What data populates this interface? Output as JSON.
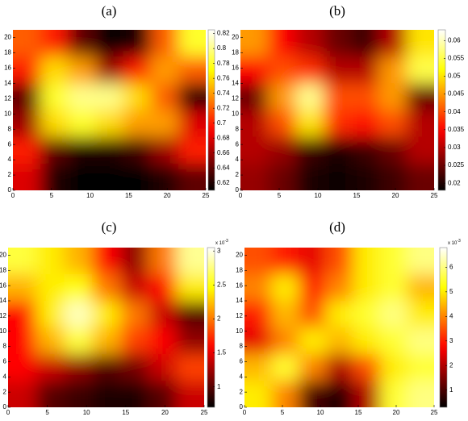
{
  "chart_data": [
    {
      "type": "heatmap",
      "title": "(a)",
      "colormap": "hot",
      "x": [
        1.79,
        5.36,
        8.93,
        12.5,
        16.07,
        19.64,
        23.21
      ],
      "y": [
        19.25,
        15.75,
        12.25,
        8.75,
        5.25,
        1.75
      ],
      "z": [
        [
          0.72,
          0.7,
          0.64,
          0.61,
          0.62,
          0.72,
          0.78
        ],
        [
          0.7,
          0.76,
          0.74,
          0.66,
          0.7,
          0.74,
          0.72
        ],
        [
          0.64,
          0.78,
          0.8,
          0.8,
          0.76,
          0.72,
          0.62
        ],
        [
          0.66,
          0.76,
          0.78,
          0.76,
          0.74,
          0.74,
          0.68
        ],
        [
          0.7,
          0.64,
          0.62,
          0.62,
          0.63,
          0.66,
          0.7
        ],
        [
          0.68,
          0.62,
          0.61,
          0.61,
          0.61,
          0.62,
          0.64
        ]
      ],
      "xlim": [
        0,
        25
      ],
      "ylim": [
        0,
        21
      ],
      "xticks": [
        0,
        5,
        10,
        15,
        20,
        25
      ],
      "yticks": [
        0,
        2,
        4,
        6,
        8,
        10,
        12,
        14,
        16,
        18,
        20
      ],
      "clim": [
        0.61,
        0.825
      ],
      "cticks": [
        0.62,
        0.64,
        0.66,
        0.68,
        0.7,
        0.72,
        0.74,
        0.76,
        0.78,
        0.8,
        0.82
      ]
    },
    {
      "type": "heatmap",
      "title": "(b)",
      "colormap": "hot",
      "x": [
        1.79,
        5.36,
        8.93,
        12.5,
        16.07,
        19.64,
        23.21
      ],
      "y": [
        19.25,
        15.75,
        12.25,
        8.75,
        5.25,
        1.75
      ],
      "z": [
        [
          0.045,
          0.035,
          0.03,
          0.025,
          0.022,
          0.03,
          0.05
        ],
        [
          0.035,
          0.04,
          0.038,
          0.03,
          0.03,
          0.045,
          0.055
        ],
        [
          0.025,
          0.045,
          0.058,
          0.04,
          0.04,
          0.045,
          0.025
        ],
        [
          0.03,
          0.04,
          0.05,
          0.038,
          0.036,
          0.04,
          0.03
        ],
        [
          0.03,
          0.028,
          0.022,
          0.02,
          0.022,
          0.025,
          0.03
        ],
        [
          0.028,
          0.025,
          0.02,
          0.019,
          0.02,
          0.022,
          0.025
        ]
      ],
      "xlim": [
        0,
        25
      ],
      "ylim": [
        0,
        21
      ],
      "xticks": [
        0,
        5,
        10,
        15,
        20,
        25
      ],
      "yticks": [
        0,
        2,
        4,
        6,
        8,
        10,
        12,
        14,
        16,
        18,
        20
      ],
      "clim": [
        0.018,
        0.063
      ],
      "cticks": [
        0.02,
        0.025,
        0.03,
        0.035,
        0.04,
        0.045,
        0.05,
        0.055,
        0.06
      ]
    },
    {
      "type": "heatmap",
      "title": "(c)",
      "colormap": "hot",
      "scale_label": {
        "base": "x 10",
        "exponent": "-3"
      },
      "x": [
        1.79,
        5.36,
        8.93,
        12.5,
        16.07,
        19.64,
        23.21
      ],
      "y": [
        19.25,
        15.75,
        12.25,
        8.75,
        5.25,
        1.75
      ],
      "z": [
        [
          2.6,
          2.4,
          2.2,
          1.6,
          1.2,
          2.0,
          2.8
        ],
        [
          2.2,
          2.4,
          2.5,
          2.0,
          1.4,
          1.6,
          2.4
        ],
        [
          1.6,
          2.4,
          2.9,
          2.4,
          2.0,
          1.4,
          1.0
        ],
        [
          1.6,
          2.2,
          2.6,
          2.2,
          1.8,
          1.6,
          1.2
        ],
        [
          1.6,
          1.4,
          1.2,
          1.0,
          1.1,
          1.4,
          1.8
        ],
        [
          1.4,
          1.0,
          0.9,
          0.8,
          0.8,
          1.0,
          1.4
        ]
      ],
      "xlim": [
        0,
        25
      ],
      "ylim": [
        0,
        21
      ],
      "xticks": [
        0,
        5,
        10,
        15,
        20,
        25
      ],
      "yticks": [
        0,
        2,
        4,
        6,
        8,
        10,
        12,
        14,
        16,
        18,
        20
      ],
      "clim": [
        0.7,
        3.05
      ],
      "cticks": [
        1,
        1.5,
        2,
        2.5,
        3
      ]
    },
    {
      "type": "heatmap",
      "title": "(d)",
      "colormap": "hot",
      "scale_label": {
        "base": "x 10",
        "exponent": "-3"
      },
      "x": [
        1.79,
        5.36,
        8.93,
        12.5,
        16.07,
        19.64,
        23.21
      ],
      "y": [
        19.25,
        15.75,
        12.25,
        8.75,
        5.25,
        1.75
      ],
      "z": [
        [
          3.5,
          3.0,
          2.5,
          3.5,
          5.0,
          5.5,
          6.0
        ],
        [
          4.0,
          5.0,
          3.0,
          4.0,
          5.0,
          5.5,
          4.5
        ],
        [
          3.0,
          4.5,
          3.5,
          5.0,
          5.5,
          6.0,
          5.0
        ],
        [
          2.5,
          4.0,
          5.0,
          4.5,
          5.0,
          5.5,
          6.0
        ],
        [
          4.5,
          5.5,
          4.0,
          2.0,
          3.5,
          5.0,
          5.5
        ],
        [
          5.0,
          4.0,
          1.0,
          0.6,
          2.0,
          5.5,
          6.0
        ]
      ],
      "xlim": [
        0,
        25
      ],
      "ylim": [
        0,
        21
      ],
      "xticks": [
        0,
        5,
        10,
        15,
        20,
        25
      ],
      "yticks": [
        0,
        2,
        4,
        6,
        8,
        10,
        12,
        14,
        16,
        18,
        20
      ],
      "clim": [
        0.3,
        6.8
      ],
      "cticks": [
        1,
        2,
        3,
        4,
        5,
        6
      ]
    }
  ]
}
